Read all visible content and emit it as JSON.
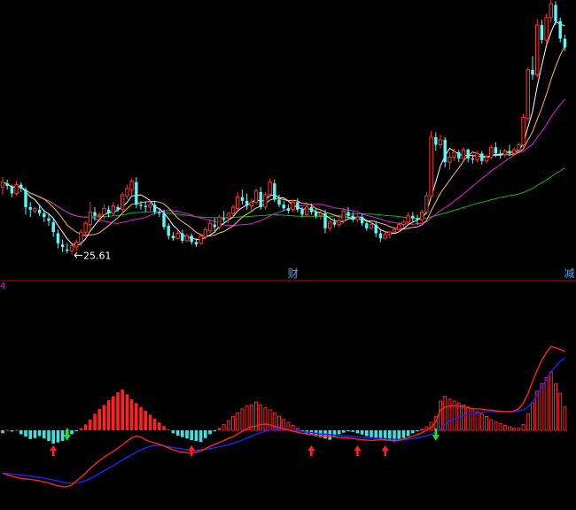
{
  "colors": {
    "background": "#000000",
    "up_candle": "#ff3232",
    "down_candle": "#54fcfc",
    "ma_short": "#ffffff",
    "ma_mid": "#ffc040",
    "ma_long": "#e020e0",
    "ma_longest": "#00c000",
    "macd_positive": "#ff2020",
    "macd_negative": "#40e0e0",
    "dif_line": "#ff2020",
    "dea_line": "#2020ff",
    "divider": "#b01010",
    "buy_arrow": "#ff2020",
    "sell_arrow": "#20e020",
    "low_label": "#ffffff",
    "marker_text": "#54a8ff"
  },
  "chart_data": [
    {
      "type": "candlestick",
      "title": "",
      "xlabel": "",
      "ylabel": "",
      "ylim": [
        24.0,
        46.0
      ],
      "grid": false,
      "annotations": [
        {
          "text": "25.61",
          "bar": 15,
          "value": 25.61,
          "kind": "low-price"
        },
        {
          "text": "财",
          "bar": 63,
          "kind": "event-marker"
        },
        {
          "text": "减",
          "bar": 123,
          "kind": "event-marker"
        }
      ],
      "candles": [
        [
          31.0,
          31.8,
          30.4,
          31.4
        ],
        [
          31.3,
          31.6,
          30.8,
          31.1
        ],
        [
          31.0,
          31.2,
          30.2,
          30.5
        ],
        [
          30.5,
          31.5,
          30.3,
          31.2
        ],
        [
          31.2,
          31.4,
          30.6,
          30.9
        ],
        [
          30.8,
          31.0,
          28.8,
          29.4
        ],
        [
          29.4,
          29.8,
          28.6,
          29.2
        ],
        [
          29.1,
          29.4,
          28.9,
          29.3
        ],
        [
          29.2,
          29.6,
          28.7,
          28.9
        ],
        [
          28.9,
          29.2,
          28.2,
          28.6
        ],
        [
          28.5,
          28.8,
          27.9,
          28.3
        ],
        [
          28.2,
          28.5,
          27.0,
          27.4
        ],
        [
          27.3,
          27.6,
          26.1,
          26.5
        ],
        [
          26.4,
          26.8,
          25.8,
          26.2
        ],
        [
          26.0,
          26.5,
          25.7,
          25.9
        ],
        [
          25.9,
          26.4,
          25.61,
          26.3
        ],
        [
          26.2,
          26.8,
          25.9,
          26.6
        ],
        [
          26.6,
          27.6,
          26.3,
          27.4
        ],
        [
          27.4,
          28.3,
          27.0,
          28.1
        ],
        [
          28.0,
          29.8,
          27.6,
          29.0
        ],
        [
          29.0,
          29.4,
          28.3,
          28.7
        ],
        [
          28.7,
          29.0,
          28.2,
          28.8
        ],
        [
          28.8,
          29.6,
          28.4,
          29.3
        ],
        [
          29.2,
          29.5,
          28.6,
          28.9
        ],
        [
          28.9,
          29.8,
          28.7,
          29.5
        ],
        [
          29.4,
          29.6,
          29.0,
          29.2
        ],
        [
          29.2,
          30.6,
          29.0,
          30.4
        ],
        [
          30.3,
          31.2,
          30.0,
          30.9
        ],
        [
          30.8,
          31.7,
          30.4,
          31.5
        ],
        [
          31.4,
          31.8,
          29.3,
          29.6
        ],
        [
          29.6,
          29.9,
          29.2,
          29.5
        ],
        [
          29.5,
          29.8,
          29.0,
          29.4
        ],
        [
          29.4,
          30.0,
          29.1,
          29.6
        ],
        [
          29.6,
          29.9,
          28.8,
          29.0
        ],
        [
          29.0,
          29.3,
          28.6,
          28.9
        ],
        [
          28.9,
          29.2,
          27.6,
          27.8
        ],
        [
          27.9,
          28.1,
          26.8,
          27.1
        ],
        [
          27.1,
          27.4,
          26.7,
          26.9
        ],
        [
          26.9,
          27.6,
          26.8,
          27.3
        ],
        [
          27.3,
          27.6,
          26.5,
          26.7
        ],
        [
          26.7,
          27.3,
          26.6,
          27.1
        ],
        [
          27.1,
          27.3,
          26.4,
          26.6
        ],
        [
          26.6,
          26.9,
          26.2,
          26.4
        ],
        [
          26.5,
          27.3,
          26.4,
          27.1
        ],
        [
          27.0,
          27.8,
          26.8,
          27.6
        ],
        [
          27.5,
          28.3,
          27.3,
          28.1
        ],
        [
          28.0,
          28.5,
          27.4,
          27.8
        ],
        [
          27.8,
          28.8,
          27.6,
          28.6
        ],
        [
          28.5,
          29.1,
          28.2,
          28.4
        ],
        [
          28.5,
          29.0,
          28.1,
          28.9
        ],
        [
          28.9,
          29.6,
          28.6,
          29.4
        ],
        [
          29.3,
          30.6,
          29.1,
          30.2
        ],
        [
          30.2,
          30.8,
          29.6,
          29.9
        ],
        [
          29.9,
          30.5,
          29.2,
          29.5
        ],
        [
          29.5,
          30.1,
          29.1,
          29.8
        ],
        [
          29.8,
          30.9,
          29.6,
          30.7
        ],
        [
          30.6,
          31.0,
          29.2,
          29.4
        ],
        [
          29.4,
          30.6,
          29.2,
          30.4
        ],
        [
          30.4,
          31.7,
          30.2,
          31.4
        ],
        [
          31.3,
          31.6,
          29.8,
          30.0
        ],
        [
          30.0,
          30.4,
          29.4,
          29.6
        ],
        [
          29.6,
          29.9,
          29.1,
          29.3
        ],
        [
          29.3,
          29.6,
          28.9,
          29.1
        ],
        [
          29.2,
          30.0,
          29.0,
          29.8
        ],
        [
          29.8,
          30.1,
          29.0,
          29.2
        ],
        [
          29.2,
          29.4,
          28.6,
          28.8
        ],
        [
          28.8,
          29.6,
          28.6,
          29.4
        ],
        [
          29.4,
          29.7,
          28.8,
          29.0
        ],
        [
          29.0,
          29.3,
          28.5,
          28.7
        ],
        [
          28.7,
          29.1,
          28.4,
          28.9
        ],
        [
          28.9,
          29.2,
          27.3,
          27.7
        ],
        [
          27.7,
          28.4,
          27.5,
          28.2
        ],
        [
          28.2,
          28.5,
          27.8,
          28.0
        ],
        [
          28.0,
          28.5,
          27.8,
          28.3
        ],
        [
          28.3,
          29.3,
          28.1,
          29.1
        ],
        [
          29.0,
          29.4,
          28.5,
          28.7
        ],
        [
          28.7,
          29.0,
          28.2,
          28.4
        ],
        [
          28.4,
          28.8,
          28.2,
          28.6
        ],
        [
          28.6,
          28.9,
          27.9,
          28.1
        ],
        [
          28.1,
          28.4,
          27.5,
          27.7
        ],
        [
          27.7,
          28.2,
          27.6,
          28.0
        ],
        [
          28.0,
          28.3,
          27.0,
          27.3
        ],
        [
          27.3,
          27.6,
          26.6,
          26.9
        ],
        [
          26.9,
          27.5,
          26.8,
          27.2
        ],
        [
          27.2,
          27.5,
          26.9,
          27.4
        ],
        [
          27.4,
          27.8,
          27.3,
          27.6
        ],
        [
          27.6,
          28.2,
          27.4,
          28.0
        ],
        [
          28.0,
          28.4,
          27.7,
          28.2
        ],
        [
          28.2,
          29.0,
          28.0,
          28.7
        ],
        [
          28.7,
          29.0,
          28.2,
          28.5
        ],
        [
          28.5,
          28.8,
          28.0,
          28.4
        ],
        [
          28.4,
          29.2,
          28.2,
          29.0
        ],
        [
          29.0,
          30.6,
          28.8,
          30.3
        ],
        [
          30.3,
          35.5,
          30.1,
          35.0
        ],
        [
          35.0,
          35.4,
          33.9,
          34.4
        ],
        [
          34.4,
          35.2,
          34.1,
          34.8
        ],
        [
          34.8,
          35.0,
          32.6,
          33.0
        ],
        [
          33.0,
          33.8,
          32.4,
          33.4
        ],
        [
          33.4,
          34.1,
          33.1,
          33.8
        ],
        [
          33.8,
          34.0,
          33.0,
          33.3
        ],
        [
          33.3,
          34.2,
          33.1,
          34.0
        ],
        [
          34.0,
          34.1,
          33.0,
          33.3
        ],
        [
          33.3,
          33.6,
          32.9,
          33.2
        ],
        [
          33.2,
          33.9,
          33.0,
          33.7
        ],
        [
          33.7,
          33.9,
          32.8,
          33.1
        ],
        [
          33.1,
          33.6,
          32.9,
          33.4
        ],
        [
          33.4,
          34.4,
          33.2,
          34.2
        ],
        [
          34.2,
          34.6,
          33.4,
          33.7
        ],
        [
          33.7,
          34.0,
          33.3,
          33.6
        ],
        [
          33.6,
          34.1,
          33.4,
          33.9
        ],
        [
          33.9,
          34.4,
          33.5,
          33.7
        ],
        [
          33.7,
          34.2,
          33.5,
          34.0
        ],
        [
          34.0,
          34.6,
          33.8,
          34.4
        ],
        [
          34.4,
          36.9,
          34.2,
          36.6
        ],
        [
          36.5,
          40.6,
          36.3,
          40.4
        ],
        [
          40.4,
          41.5,
          39.6,
          40.0
        ],
        [
          40.0,
          44.5,
          39.8,
          44.0
        ],
        [
          44.0,
          44.4,
          42.5,
          42.8
        ],
        [
          42.8,
          44.9,
          42.4,
          44.6
        ],
        [
          44.6,
          46.0,
          44.2,
          45.7
        ],
        [
          45.6,
          45.9,
          44.0,
          44.3
        ],
        [
          44.3,
          44.6,
          42.6,
          42.9
        ],
        [
          42.9,
          43.2,
          41.9,
          42.2
        ]
      ],
      "moving_averages": [
        {
          "name": "",
          "period": 5,
          "color_key": "ma_short"
        },
        {
          "name": "",
          "period": 10,
          "color_key": "ma_mid"
        },
        {
          "name": "",
          "period": 20,
          "color_key": "ma_long"
        },
        {
          "name": "",
          "period": 60,
          "color_key": "ma_longest"
        }
      ]
    },
    {
      "type": "bar",
      "title": "",
      "xlabel": "",
      "ylabel": "",
      "indicator_label": "4",
      "grid": false,
      "histogram": [
        -0.15,
        0.02,
        -0.06,
        0.02,
        -0.2,
        -0.32,
        -0.45,
        -0.4,
        -0.3,
        -0.42,
        -0.55,
        -0.68,
        -0.62,
        -0.55,
        -0.38,
        -0.2,
        -0.02,
        0.1,
        0.3,
        0.55,
        0.85,
        1.1,
        1.3,
        1.55,
        1.75,
        1.95,
        2.1,
        1.85,
        1.6,
        1.4,
        1.2,
        1.0,
        0.8,
        0.6,
        0.4,
        0.22,
        0.05,
        -0.15,
        -0.28,
        -0.35,
        -0.42,
        -0.5,
        -0.55,
        -0.6,
        -0.4,
        -0.2,
        -0.05,
        0.12,
        0.3,
        0.5,
        0.7,
        0.9,
        1.1,
        1.25,
        1.3,
        1.45,
        1.3,
        1.15,
        1.05,
        0.9,
        0.72,
        0.55,
        0.4,
        0.25,
        0.1,
        -0.05,
        -0.15,
        -0.22,
        -0.3,
        -0.35,
        -0.42,
        -0.48,
        -0.3,
        -0.2,
        -0.12,
        -0.05,
        -0.08,
        -0.15,
        -0.22,
        -0.3,
        -0.35,
        -0.38,
        -0.42,
        -0.48,
        -0.52,
        -0.55,
        -0.5,
        -0.4,
        -0.3,
        -0.15,
        -0.05,
        0.05,
        0.18,
        0.4,
        0.7,
        1.5,
        1.75,
        1.6,
        1.5,
        1.4,
        1.3,
        1.2,
        1.05,
        0.95,
        0.85,
        0.7,
        0.55,
        0.45,
        0.35,
        0.25,
        0.18,
        0.12,
        0.1,
        0.3,
        0.85,
        1.4,
        2.0,
        2.4,
        2.7,
        3.0,
        2.4,
        1.9,
        1.2
      ],
      "dif": [
        -2.2,
        -2.28,
        -2.35,
        -2.42,
        -2.48,
        -2.5,
        -2.52,
        -2.55,
        -2.6,
        -2.65,
        -2.7,
        -2.78,
        -2.85,
        -2.9,
        -2.9,
        -2.8,
        -2.6,
        -2.4,
        -2.2,
        -1.95,
        -1.75,
        -1.55,
        -1.38,
        -1.22,
        -1.08,
        -0.92,
        -0.75,
        -0.55,
        -0.38,
        -0.3,
        -0.35,
        -0.48,
        -0.58,
        -0.65,
        -0.72,
        -0.8,
        -0.9,
        -1.0,
        -1.08,
        -1.12,
        -1.15,
        -1.18,
        -1.12,
        -1.05,
        -0.95,
        -0.82,
        -0.72,
        -0.62,
        -0.52,
        -0.42,
        -0.32,
        -0.18,
        -0.05,
        0.08,
        0.18,
        0.22,
        0.3,
        0.32,
        0.28,
        0.2,
        0.15,
        0.08,
        0.02,
        -0.05,
        -0.1,
        -0.15,
        -0.18,
        -0.22,
        -0.25,
        -0.28,
        -0.3,
        -0.32,
        -0.35,
        -0.36,
        -0.38,
        -0.4,
        -0.42,
        -0.45,
        -0.48,
        -0.5,
        -0.52,
        -0.5,
        -0.48,
        -0.5,
        -0.52,
        -0.55,
        -0.52,
        -0.46,
        -0.38,
        -0.3,
        -0.22,
        -0.12,
        0.0,
        0.15,
        0.45,
        1.05,
        1.2,
        1.25,
        1.28,
        1.25,
        1.2,
        1.15,
        1.12,
        1.1,
        1.08,
        1.05,
        1.03,
        1.0,
        0.98,
        0.96,
        0.95,
        1.0,
        1.1,
        1.4,
        1.9,
        2.5,
        3.1,
        3.6,
        4.0,
        4.3,
        4.25,
        4.15,
        4.05
      ],
      "dea": [
        -2.2,
        -2.22,
        -2.24,
        -2.26,
        -2.29,
        -2.32,
        -2.35,
        -2.38,
        -2.42,
        -2.46,
        -2.5,
        -2.55,
        -2.6,
        -2.66,
        -2.7,
        -2.72,
        -2.7,
        -2.66,
        -2.58,
        -2.48,
        -2.36,
        -2.22,
        -2.08,
        -1.94,
        -1.8,
        -1.66,
        -1.52,
        -1.38,
        -1.25,
        -1.12,
        -1.0,
        -0.9,
        -0.82,
        -0.78,
        -0.78,
        -0.8,
        -0.84,
        -0.88,
        -0.92,
        -0.96,
        -1.0,
        -1.02,
        -1.02,
        -1.0,
        -0.98,
        -0.94,
        -0.9,
        -0.85,
        -0.8,
        -0.74,
        -0.66,
        -0.58,
        -0.5,
        -0.4,
        -0.3,
        -0.2,
        -0.12,
        -0.05,
        0.0,
        0.05,
        0.07,
        0.06,
        0.03,
        0.0,
        -0.03,
        -0.06,
        -0.09,
        -0.12,
        -0.15,
        -0.18,
        -0.2,
        -0.22,
        -0.24,
        -0.26,
        -0.28,
        -0.3,
        -0.32,
        -0.34,
        -0.36,
        -0.38,
        -0.4,
        -0.41,
        -0.42,
        -0.43,
        -0.44,
        -0.46,
        -0.47,
        -0.47,
        -0.46,
        -0.43,
        -0.39,
        -0.34,
        -0.28,
        -0.2,
        -0.1,
        0.1,
        0.3,
        0.45,
        0.58,
        0.68,
        0.76,
        0.82,
        0.87,
        0.9,
        0.93,
        0.95,
        0.96,
        0.97,
        0.97,
        0.97,
        0.97,
        0.97,
        0.99,
        1.05,
        1.2,
        1.45,
        1.8,
        2.2,
        2.6,
        3.0,
        3.3,
        3.55,
        3.7
      ],
      "signals": [
        {
          "bar": 11,
          "type": "buy"
        },
        {
          "bar": 14,
          "type": "sell"
        },
        {
          "bar": 41,
          "type": "buy"
        },
        {
          "bar": 67,
          "type": "buy"
        },
        {
          "bar": 77,
          "type": "buy"
        },
        {
          "bar": 83,
          "type": "buy"
        },
        {
          "bar": 94,
          "type": "sell"
        }
      ]
    }
  ]
}
